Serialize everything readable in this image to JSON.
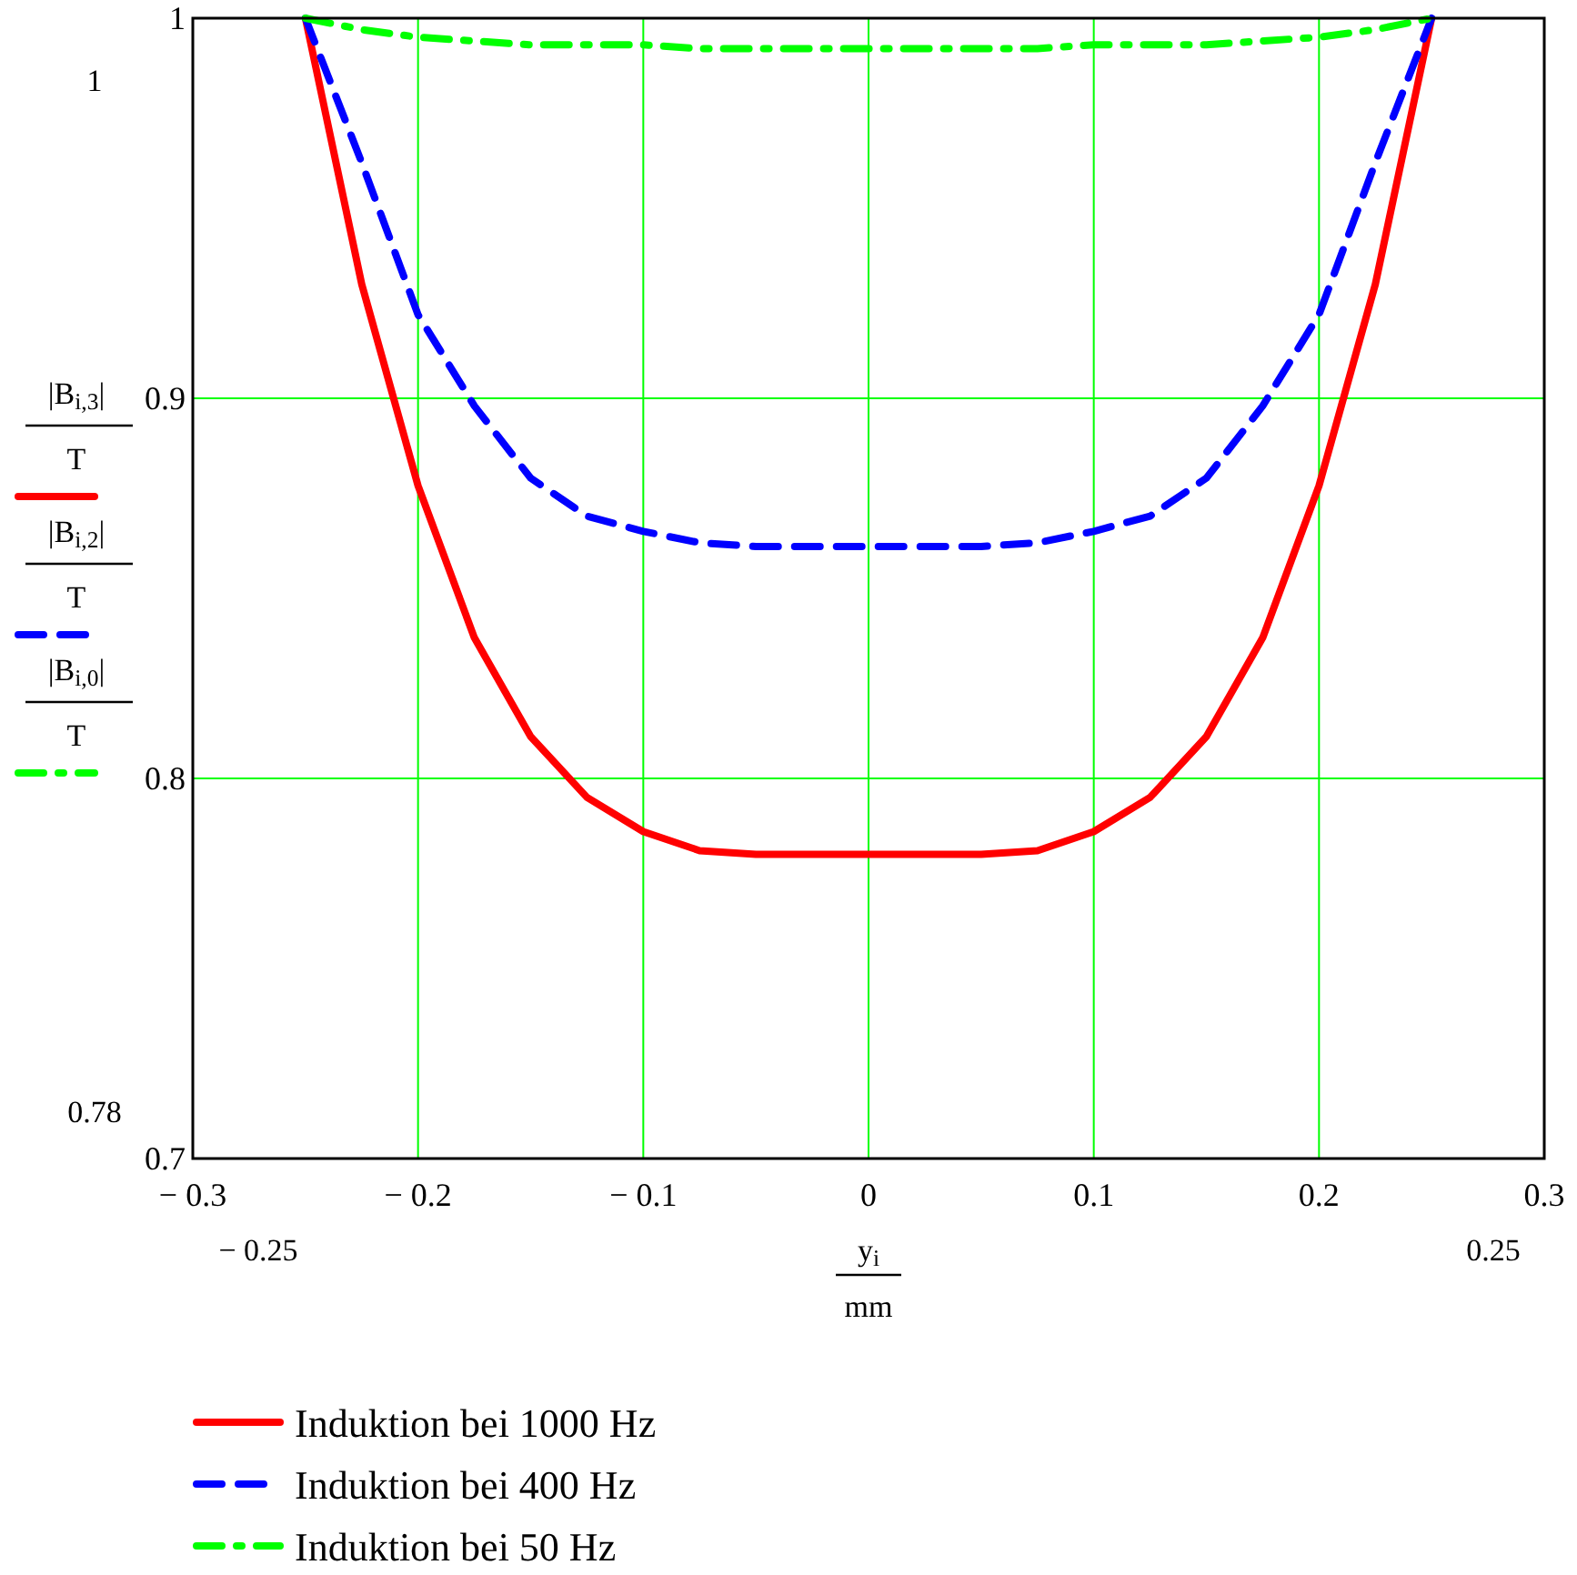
{
  "chart_data": {
    "type": "line",
    "xlabel": "y$_{i}$\nmm",
    "ylabel": "|B$_{i,3}$|\nT\n|B$_{i,2}$|\nT\n|B$_{i,0}$|\nT",
    "x": [
      -0.25,
      -0.225,
      -0.2,
      -0.175,
      -0.15,
      -0.125,
      -0.1,
      -0.075,
      -0.05,
      -0.025,
      0,
      0.025,
      0.05,
      0.075,
      0.1,
      0.125,
      0.15,
      0.175,
      0.2,
      0.225,
      0.25
    ],
    "series": [
      {
        "name": "Induktion bei 1000 Hz",
        "color": "#ff0000",
        "line_style": "solid",
        "values": [
          1,
          0.93,
          0.877,
          0.837,
          0.811,
          0.795,
          0.786,
          0.781,
          0.78,
          0.78,
          0.78,
          0.78,
          0.78,
          0.781,
          0.786,
          0.795,
          0.811,
          0.837,
          0.877,
          0.93,
          1
        ]
      },
      {
        "name": "Induktion bei 400 Hz",
        "color": "#0000ff",
        "line_style": "dashed",
        "values": [
          1,
          0.962,
          0.922,
          0.898,
          0.879,
          0.869,
          0.865,
          0.862,
          0.861,
          0.861,
          0.861,
          0.861,
          0.861,
          0.862,
          0.865,
          0.869,
          0.879,
          0.898,
          0.922,
          0.962,
          1
        ]
      },
      {
        "name": "Induktion bei 50 Hz",
        "color": "#00ff00",
        "line_style": "dashdot",
        "values": [
          1,
          0.997,
          0.995,
          0.994,
          0.993,
          0.993,
          0.993,
          0.992,
          0.992,
          0.992,
          0.992,
          0.992,
          0.992,
          0.992,
          0.993,
          0.993,
          0.993,
          0.994,
          0.995,
          0.997,
          1
        ]
      }
    ],
    "xlim": [
      -0.3,
      0.3
    ],
    "xticks": [
      {
        "value": -0.3,
        "label": "− 0.3"
      },
      {
        "value": -0.2,
        "label": "− 0.2"
      },
      {
        "value": -0.1,
        "label": "− 0.1"
      },
      0,
      0.1,
      0.2,
      0.3
    ],
    "ylim": [
      0.7,
      1
    ],
    "yticks": [
      0.7,
      0.8,
      0.9,
      1
    ],
    "grid": true,
    "legend": "bottom",
    "marker": "none",
    "annotations": [
      "1",
      "0.78",
      "− 0.25",
      "0.25"
    ]
  }
}
